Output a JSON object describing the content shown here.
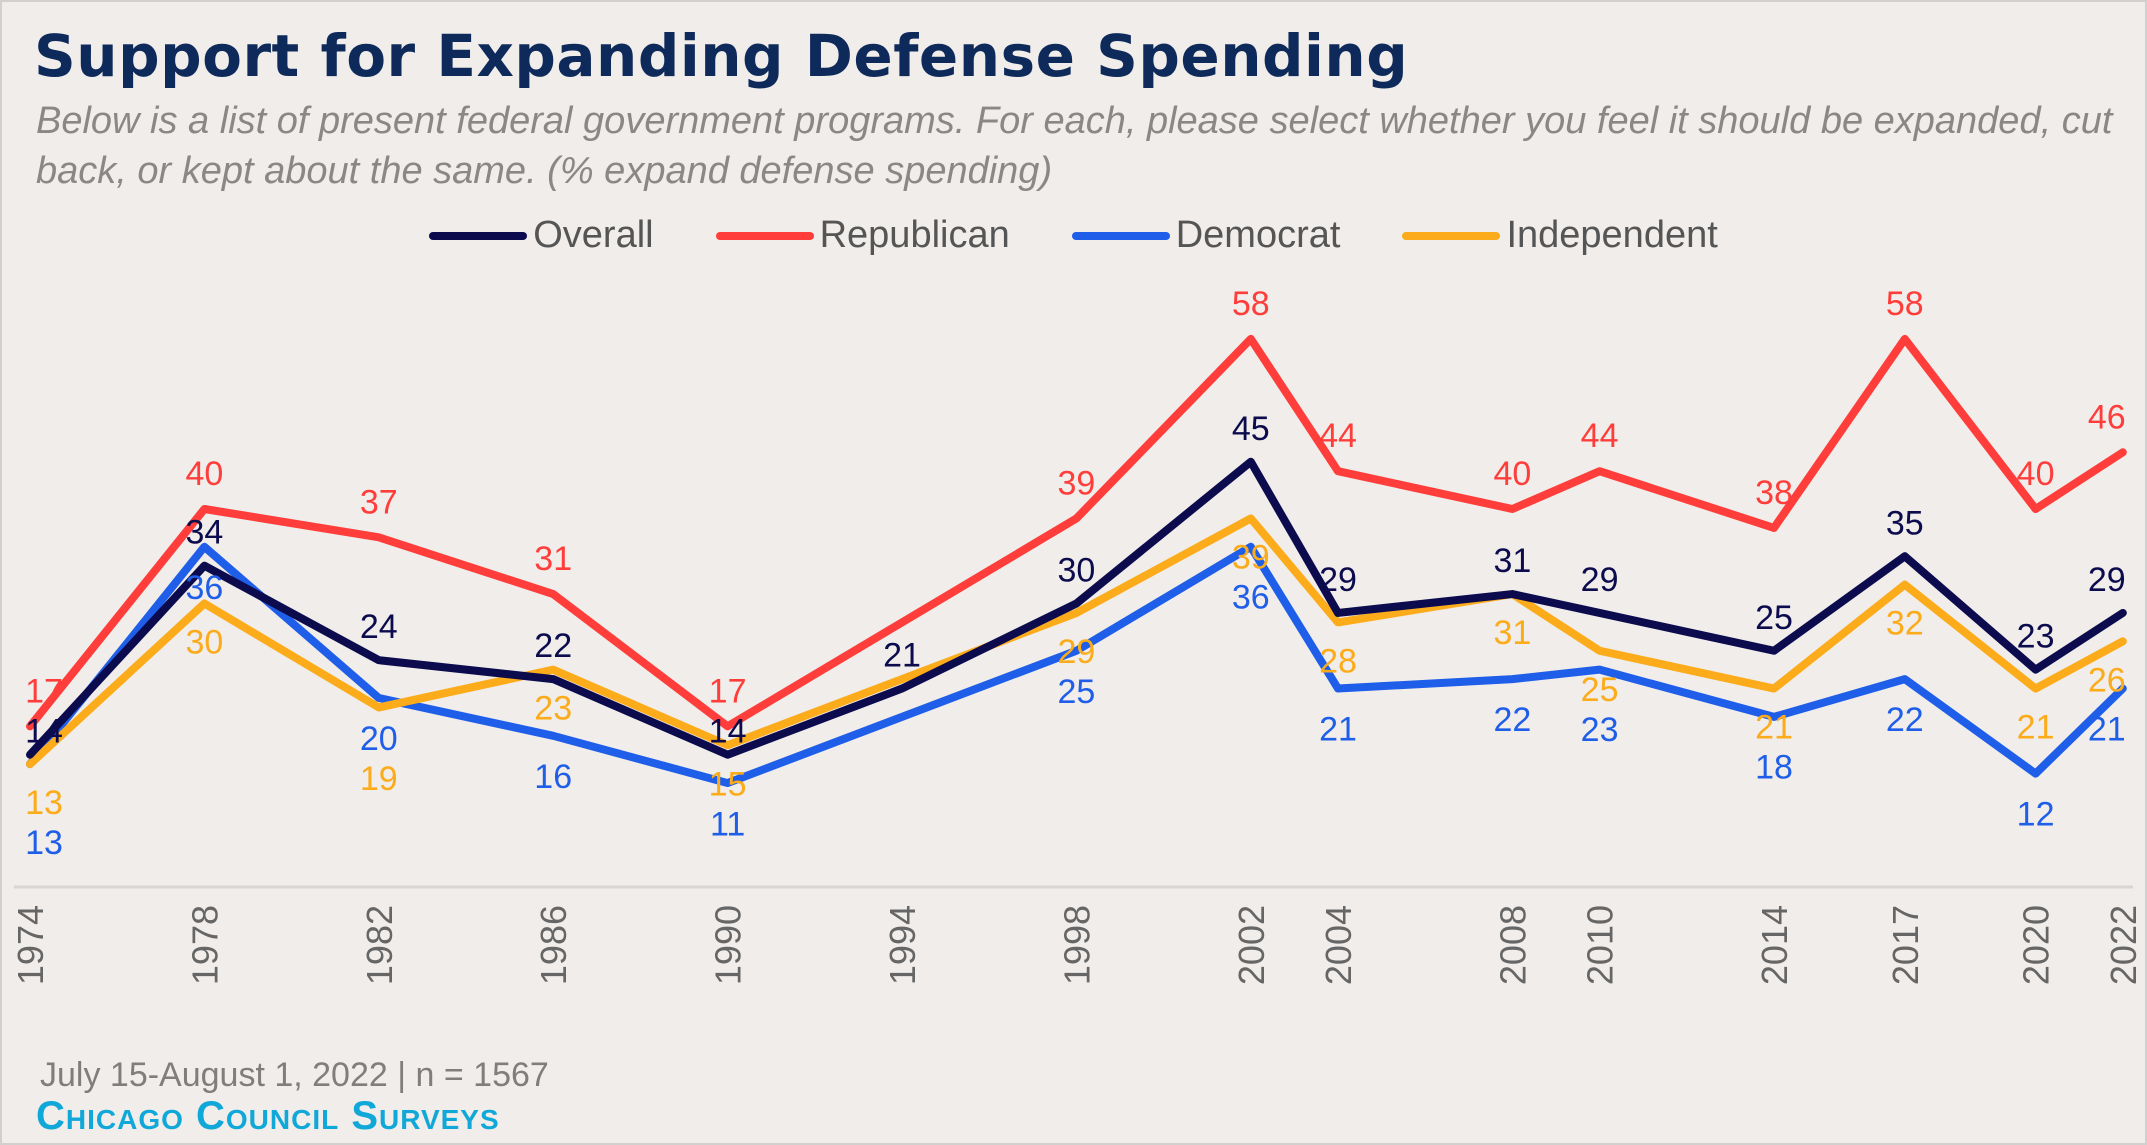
{
  "chart_data": {
    "type": "line",
    "title": "Support for Expanding Defense Spending",
    "subtitle": "Below is a list of present federal government programs. For each, please select whether you feel it should be expanded, cut back, or kept about the same. (% expand defense spending)",
    "x": [
      1974,
      1978,
      1982,
      1986,
      1990,
      1994,
      1998,
      2002,
      2004,
      2008,
      2010,
      2014,
      2017,
      2020,
      2022
    ],
    "x_tick_labels": [
      "1974",
      "1978",
      "1982",
      "1986",
      "1990",
      "1994",
      "1998",
      "2002",
      "2004",
      "2008",
      "2010",
      "2014",
      "2017",
      "2020",
      "2022"
    ],
    "ylim": [
      0,
      60
    ],
    "grid": false,
    "legend_placement": "top-center",
    "series": [
      {
        "name": "Overall",
        "color": "#0b0b4d",
        "values": [
          14,
          34,
          24,
          22,
          14,
          21,
          30,
          45,
          29,
          31,
          29,
          25,
          35,
          23,
          29
        ],
        "labeled": [
          true,
          true,
          true,
          true,
          true,
          true,
          true,
          true,
          true,
          true,
          true,
          true,
          true,
          true,
          true
        ]
      },
      {
        "name": "Republican",
        "color": "#ff3d3a",
        "values": [
          17,
          40,
          37,
          31,
          17,
          28,
          39,
          58,
          44,
          40,
          44,
          38,
          58,
          40,
          46
        ],
        "labeled": [
          true,
          true,
          true,
          true,
          true,
          false,
          true,
          true,
          true,
          true,
          true,
          true,
          true,
          true,
          true
        ]
      },
      {
        "name": "Democrat",
        "color": "#1f5ee8",
        "values": [
          13,
          36,
          20,
          16,
          11,
          18,
          25,
          36,
          21,
          22,
          23,
          18,
          22,
          12,
          21
        ],
        "labeled": [
          true,
          true,
          true,
          true,
          true,
          false,
          true,
          true,
          true,
          true,
          true,
          true,
          true,
          true,
          true
        ]
      },
      {
        "name": "Independent",
        "color": "#fcab1a",
        "values": [
          13,
          30,
          19,
          23,
          15,
          22,
          29,
          39,
          28,
          31,
          25,
          21,
          32,
          21,
          26
        ],
        "labeled": [
          true,
          true,
          true,
          true,
          true,
          false,
          true,
          true,
          true,
          true,
          true,
          true,
          true,
          true,
          true
        ]
      }
    ]
  },
  "footnote": "July 15-August 1, 2022  | n = 1567",
  "source": "Chicago Council Surveys"
}
